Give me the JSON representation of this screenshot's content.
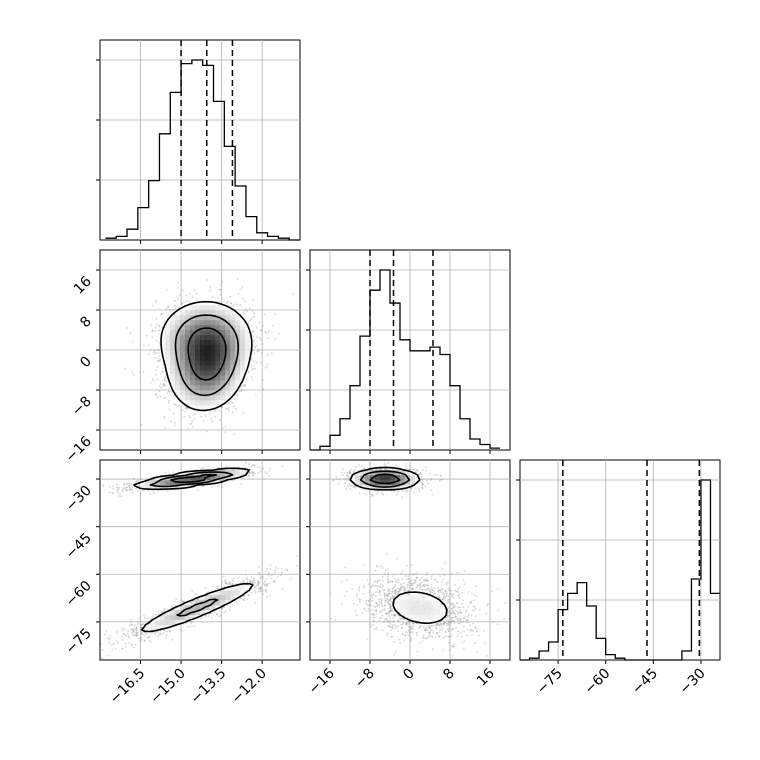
{
  "chart_data": {
    "type": "corner",
    "parameters": [
      {
        "axis_range": [
          -18.0,
          -10.6
        ],
        "ticks": [
          -16.5,
          -15.0,
          -13.5,
          -12.0
        ],
        "tick_labels": [
          "−16.5",
          "−15.0",
          "−13.5",
          "−12.0"
        ],
        "quantiles": [
          -15.0,
          -14.05,
          -13.1
        ]
      },
      {
        "axis_range": [
          -20.0,
          20.0
        ],
        "ticks": [
          -16,
          -8,
          0,
          8,
          16
        ],
        "tick_labels": [
          "−16",
          "−8",
          "0",
          "8",
          "16"
        ],
        "quantiles": [
          -8.0,
          -3.3,
          4.6
        ]
      },
      {
        "axis_range": [
          -87.0,
          -24.0
        ],
        "ticks": [
          -75,
          -60,
          -45,
          -30
        ],
        "tick_labels": [
          "−75",
          "−60",
          "−45",
          "−30"
        ],
        "quantiles": [
          -73.5,
          -47.0,
          -30.5
        ]
      }
    ],
    "histograms": [
      {
        "bin_edges": [
          -17.8,
          -17.4,
          -17.0,
          -16.6,
          -16.2,
          -15.8,
          -15.4,
          -15.0,
          -14.6,
          -14.2,
          -13.8,
          -13.4,
          -13.0,
          -12.6,
          -12.2,
          -11.8,
          -11.4,
          -11.0,
          -10.6
        ],
        "counts": [
          0.01,
          0.02,
          0.06,
          0.18,
          0.33,
          0.59,
          0.82,
          0.98,
          1.0,
          0.97,
          0.77,
          0.52,
          0.3,
          0.13,
          0.04,
          0.02,
          0.01,
          0.0
        ]
      },
      {
        "bin_edges": [
          -20,
          -18,
          -16,
          -14,
          -12,
          -10,
          -8,
          -6,
          -4,
          -2,
          0,
          2,
          4,
          6,
          8,
          10,
          12,
          14,
          16,
          18
        ],
        "counts": [
          0.0,
          0.02,
          0.08,
          0.17,
          0.35,
          0.62,
          0.87,
          0.98,
          0.8,
          0.6,
          0.54,
          0.54,
          0.56,
          0.52,
          0.35,
          0.17,
          0.06,
          0.03,
          0.01
        ],
        "notes": "peak near -5, secondary shoulder near +4"
      },
      {
        "bin_edges": [
          -87,
          -84,
          -81,
          -78,
          -75,
          -72,
          -69,
          -66,
          -63,
          -60,
          -57,
          -54,
          -51,
          -48,
          -45,
          -42,
          -39,
          -36,
          -33,
          -30,
          -27,
          -24
        ],
        "counts": [
          0.0,
          0.01,
          0.05,
          0.1,
          0.28,
          0.37,
          0.43,
          0.3,
          0.12,
          0.03,
          0.01,
          0.0,
          0.0,
          0.0,
          0.0,
          0.0,
          0.0,
          0.05,
          0.45,
          1.0,
          0.37
        ]
      }
    ],
    "modes_2d": [
      {
        "x_param": 0,
        "y_param": 1,
        "modes": [
          {
            "center": [
              -14.05,
              -4.0
            ],
            "spread": [
              0.75,
              4.5
            ],
            "tilt": 0.1,
            "weight": 0.5
          },
          {
            "center": [
              -14.1,
              2.5
            ],
            "spread": [
              0.9,
              4.0
            ],
            "tilt": 0.0,
            "weight": 0.5
          }
        ]
      },
      {
        "x_param": 0,
        "y_param": 2,
        "modes": [
          {
            "center": [
              -14.6,
              -30.0
            ],
            "spread": [
              1.1,
              1.6
            ],
            "tilt": 0.75,
            "weight": 0.5
          },
          {
            "center": [
              -14.4,
              -70.5
            ],
            "spread": [
              1.35,
              5.0
            ],
            "tilt": 0.92,
            "weight": 0.5
          }
        ]
      },
      {
        "x_param": 1,
        "y_param": 2,
        "modes": [
          {
            "center": [
              -5.0,
              -30.0
            ],
            "spread": [
              3.5,
              1.7
            ],
            "tilt": 0.0,
            "weight": 0.5
          },
          {
            "center": [
              2.0,
              -70.5
            ],
            "spread": [
              5.5,
              5.0
            ],
            "tilt": -0.25,
            "weight": 0.5
          }
        ]
      }
    ],
    "grid": true,
    "contour_levels": 3,
    "density_shading": "grayscale",
    "quantile_line_style": "dashed",
    "colors": {
      "line": "#000000",
      "grid": "#b0b0b0",
      "points": "#8a8a8a"
    }
  }
}
